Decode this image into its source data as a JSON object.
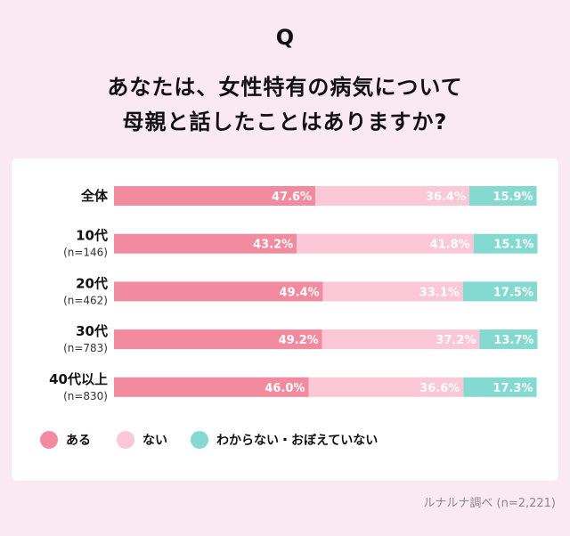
{
  "question": {
    "mark": "Q",
    "line1": "あなたは、女性特有の病気について",
    "line2": "母親と話したことはありますか?"
  },
  "source": "ルナルナ調べ (n=2,221)",
  "colors": {
    "aru": "#f38ba0",
    "nai": "#fcc7d7",
    "wakaranai": "#84d9d0",
    "background": "#fbe9f1"
  },
  "chart_data": {
    "type": "bar",
    "orientation": "horizontal",
    "stacked": true,
    "percent": true,
    "categories": [
      {
        "label": "全体",
        "sub": ""
      },
      {
        "label": "10代",
        "sub": "(n=146)"
      },
      {
        "label": "20代",
        "sub": "(n=462)"
      },
      {
        "label": "30代",
        "sub": "(n=783)"
      },
      {
        "label": "40代以上",
        "sub": "(n=830)"
      }
    ],
    "series": [
      {
        "name": "ある",
        "color": "#f38ba0",
        "values": [
          47.6,
          43.2,
          49.4,
          49.2,
          46.0
        ],
        "labels": [
          "47.6%",
          "43.2%",
          "49.4%",
          "49.2%",
          "46.0%"
        ]
      },
      {
        "name": "ない",
        "color": "#fcc7d7",
        "values": [
          36.4,
          41.8,
          33.1,
          37.2,
          36.6
        ],
        "labels": [
          "36.4%",
          "41.8%",
          "33.1%",
          "37.2%",
          "36.6%"
        ]
      },
      {
        "name": "わからない・おぼえていない",
        "color": "#84d9d0",
        "values": [
          15.9,
          15.1,
          17.5,
          13.7,
          17.3
        ],
        "labels": [
          "15.9%",
          "15.1%",
          "17.5%",
          "13.7%",
          "17.3%"
        ]
      }
    ],
    "legend_position": "bottom-left",
    "xlim": [
      0,
      100
    ]
  }
}
